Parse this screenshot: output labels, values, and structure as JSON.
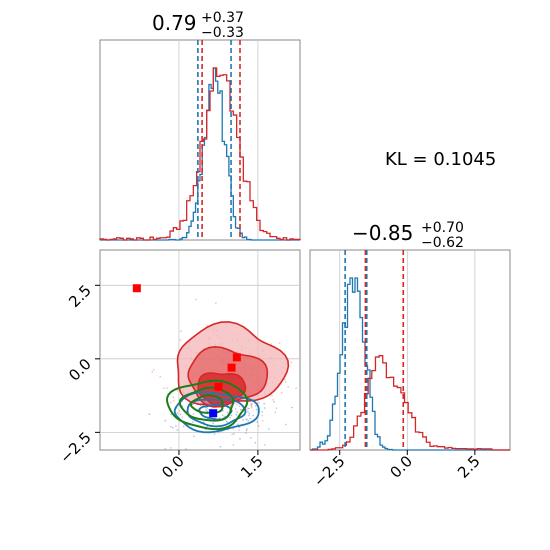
{
  "chart_data": {
    "type": "corner",
    "kl_text": "KL = 0.1045",
    "panels": {
      "param1_hist": {
        "title": {
          "main": "0.79",
          "upper": "+0.37",
          "lower": "−0.33"
        },
        "xlim": [
          -1.5,
          2.3
        ],
        "blue_quantiles": [
          0.36,
          0.99
        ],
        "red_quantiles": [
          0.44,
          1.16
        ],
        "grid_x": [
          0.0,
          1.5
        ]
      },
      "param2_hist": {
        "title": {
          "main": "−0.85",
          "upper": "+0.70",
          "lower": "−0.62"
        },
        "xlim": [
          -3.6,
          3.8
        ],
        "xticks": [
          -2.5,
          0.0,
          2.5
        ],
        "xtick_labels": [
          "−2.5",
          "0.0",
          "2.5"
        ],
        "blue_quantiles": [
          -2.3,
          -1.5
        ],
        "red_quantiles": [
          -1.55,
          -0.15
        ],
        "grid_x": [
          -2.5,
          0.0,
          2.5
        ]
      },
      "joint": {
        "xlim": [
          -1.5,
          2.3
        ],
        "ylim": [
          -3.1,
          3.7
        ],
        "xticks": [
          0.0,
          1.5
        ],
        "xtick_labels": [
          "0.0",
          "1.5"
        ],
        "yticks": [
          2.5,
          0.0,
          -2.5
        ],
        "ytick_labels": [
          "2.5",
          "0.0",
          "−2.5"
        ],
        "red_markers": [
          [
            -0.8,
            2.4
          ],
          [
            1.1,
            0.05
          ],
          [
            1.0,
            -0.3
          ],
          [
            0.75,
            -0.95
          ]
        ],
        "blue_marker": [
          0.65,
          -1.85
        ],
        "contours": {
          "red": [
            {
              "cx": 0.95,
              "cy": -0.25,
              "rx": 1.05,
              "ry": 1.35
            },
            {
              "cx": 0.9,
              "cy": -0.6,
              "rx": 0.75,
              "ry": 0.95
            },
            {
              "cx": 0.8,
              "cy": -1.0,
              "rx": 0.45,
              "ry": 0.55
            }
          ],
          "blue": [
            {
              "cx": 0.7,
              "cy": -1.8,
              "rx": 0.8,
              "ry": 0.65
            },
            {
              "cx": 0.7,
              "cy": -1.8,
              "rx": 0.55,
              "ry": 0.45
            },
            {
              "cx": 0.7,
              "cy": -1.8,
              "rx": 0.3,
              "ry": 0.25
            }
          ],
          "green": [
            {
              "cx": 0.55,
              "cy": -1.55,
              "rx": 0.75,
              "ry": 0.8
            },
            {
              "cx": 0.55,
              "cy": -1.55,
              "rx": 0.5,
              "ry": 0.55
            },
            {
              "cx": 0.55,
              "cy": -1.55,
              "rx": 0.3,
              "ry": 0.3
            }
          ]
        }
      }
    },
    "colors": {
      "blue": "#1f77b4",
      "red": "#d62728",
      "green": "#1a7f1a",
      "red_fill": "#f4b6b7",
      "red_fill_dark": "#e35b5d",
      "blue_marker": "#0000ff",
      "red_marker": "#ff0000",
      "grid": "#c8c8c8",
      "spine": "#888888"
    }
  }
}
